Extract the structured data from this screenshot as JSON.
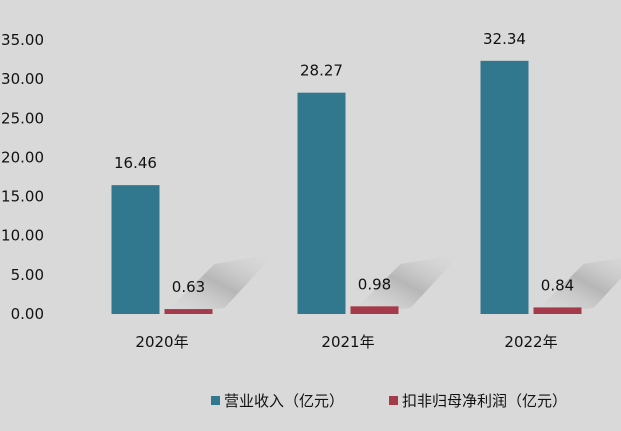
{
  "chart_data": {
    "type": "bar",
    "categories": [
      "2020年",
      "2021年",
      "2022年"
    ],
    "series": [
      {
        "name": "营业收入（亿元）",
        "color": "#31788f",
        "values": [
          16.46,
          28.27,
          32.34
        ],
        "labels": [
          "16.46",
          "28.27",
          "32.34"
        ]
      },
      {
        "name": "扣非归母净利润（亿元）",
        "color": "#a53a4a",
        "values": [
          0.63,
          0.98,
          0.84
        ],
        "labels": [
          "0.63",
          "0.98",
          "0.84"
        ]
      }
    ],
    "yticks": [
      "0.00",
      "5.00",
      "10.00",
      "15.00",
      "20.00",
      "25.00",
      "30.00",
      "35.00"
    ],
    "ylim": [
      0,
      35
    ],
    "grid": false,
    "legend_position": "bottom-right",
    "title": "",
    "xlabel": "",
    "ylabel": ""
  }
}
